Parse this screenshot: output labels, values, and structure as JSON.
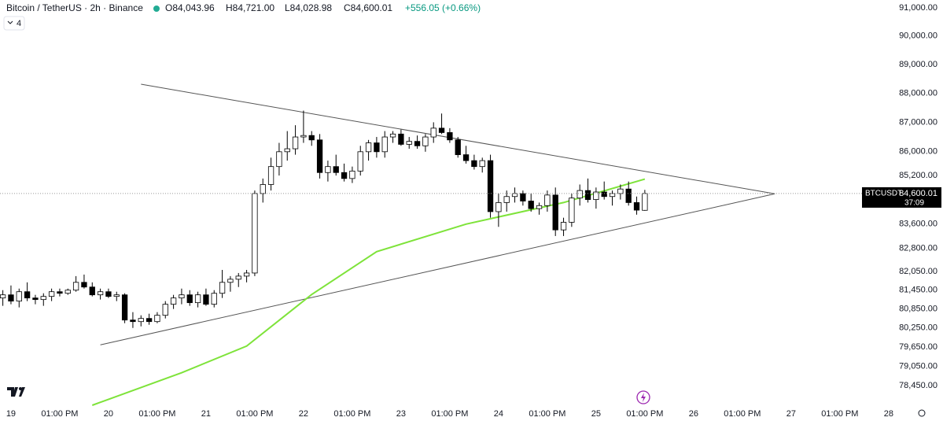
{
  "header": {
    "symbol": "Bitcoin / TetherUS · 2h · Binance",
    "open": "O84,043.96",
    "high": "H84,721.00",
    "low": "L84,028.98",
    "close": "C84,600.01",
    "change": "+556.05 (+0.66%)",
    "indicators": "4"
  },
  "chart_data": {
    "type": "candlestick",
    "log_scale": true,
    "grid": false,
    "up_color": "#ffffff",
    "down_color": "#000000",
    "wick_color": "#000000",
    "ylim": [
      77850,
      91280
    ],
    "xlim": [
      -2.7,
      217
    ],
    "yticks": [
      {
        "value": 91000,
        "label": "91,000.00"
      },
      {
        "value": 90000,
        "label": "90,000.00"
      },
      {
        "value": 89000,
        "label": "89,000.00"
      },
      {
        "value": 88000,
        "label": "88,000.00"
      },
      {
        "value": 87000,
        "label": "87,000.00"
      },
      {
        "value": 86000,
        "label": "86,000.00"
      },
      {
        "value": 85200,
        "label": "85,200.00"
      },
      {
        "value": 83600,
        "label": "83,600.00"
      },
      {
        "value": 82800,
        "label": "82,800.00"
      },
      {
        "value": 82050,
        "label": "82,050.00"
      },
      {
        "value": 81450,
        "label": "81,450.00"
      },
      {
        "value": 80850,
        "label": "80,850.00"
      },
      {
        "value": 80250,
        "label": "80,250.00"
      },
      {
        "value": 79650,
        "label": "79,650.00"
      },
      {
        "value": 79050,
        "label": "79,050.00"
      },
      {
        "value": 78450,
        "label": "78,450.00"
      }
    ],
    "xticks": [
      {
        "value": 0,
        "label": "19"
      },
      {
        "value": 12,
        "label": "01:00 PM"
      },
      {
        "value": 24,
        "label": "20"
      },
      {
        "value": 36,
        "label": "01:00 PM"
      },
      {
        "value": 48,
        "label": "21"
      },
      {
        "value": 60,
        "label": "01:00 PM"
      },
      {
        "value": 72,
        "label": "22"
      },
      {
        "value": 84,
        "label": "01:00 PM"
      },
      {
        "value": 96,
        "label": "23"
      },
      {
        "value": 108,
        "label": "01:00 PM"
      },
      {
        "value": 120,
        "label": "24"
      },
      {
        "value": 132,
        "label": "01:00 PM"
      },
      {
        "value": 144,
        "label": "25"
      },
      {
        "value": 156,
        "label": "01:00 PM"
      },
      {
        "value": 168,
        "label": "26"
      },
      {
        "value": 180,
        "label": "01:00 PM"
      },
      {
        "value": 192,
        "label": "27"
      },
      {
        "value": 204,
        "label": "01:00 PM"
      },
      {
        "value": 216,
        "label": "28"
      }
    ],
    "candles": {
      "x": [
        -2,
        0,
        2,
        4,
        6,
        8,
        10,
        12,
        14,
        16,
        18,
        20,
        22,
        24,
        26,
        28,
        30,
        32,
        34,
        36,
        38,
        40,
        42,
        44,
        46,
        48,
        50,
        52,
        54,
        56,
        58,
        60,
        62,
        64,
        66,
        68,
        70,
        72,
        74,
        76,
        78,
        80,
        82,
        84,
        86,
        88,
        90,
        92,
        94,
        96,
        98,
        100,
        102,
        104,
        106,
        108,
        110,
        112,
        114,
        116,
        118,
        120,
        122,
        124,
        126,
        128,
        130,
        132,
        134,
        136,
        138,
        140,
        142,
        144,
        146,
        148,
        150,
        152,
        154,
        156
      ],
      "open": [
        81200,
        81300,
        81100,
        81400,
        81200,
        81150,
        81250,
        81400,
        81350,
        81450,
        81700,
        81550,
        81300,
        81400,
        81250,
        81300,
        80500,
        80450,
        80550,
        80450,
        80650,
        81000,
        81200,
        81300,
        81050,
        81300,
        81000,
        81350,
        81700,
        81800,
        81900,
        82000,
        84600,
        84900,
        85500,
        86000,
        86100,
        86500,
        86550,
        86400,
        85300,
        85500,
        85300,
        85100,
        85350,
        86000,
        86300,
        86000,
        86500,
        86600,
        86250,
        86350,
        86200,
        86500,
        86800,
        86650,
        86400,
        85900,
        85700,
        85500,
        85700,
        84000,
        84300,
        84500,
        84600,
        84350,
        84100,
        84200,
        84550,
        83400,
        83650,
        84450,
        84700,
        84400,
        84650,
        84500,
        84600,
        84750,
        84300,
        84043.96
      ],
      "high": [
        81450,
        81600,
        81500,
        81700,
        81300,
        81350,
        81500,
        81500,
        81500,
        81900,
        81950,
        81700,
        81500,
        81500,
        81400,
        81350,
        80750,
        80650,
        80700,
        80750,
        81100,
        81300,
        81500,
        81450,
        81400,
        81500,
        81450,
        82100,
        81900,
        82000,
        82100,
        84700,
        85100,
        85800,
        86300,
        86700,
        86900,
        87400,
        86700,
        86600,
        85700,
        85900,
        85600,
        85500,
        86200,
        86400,
        86500,
        86700,
        86700,
        86750,
        86500,
        86550,
        86600,
        87000,
        87300,
        86800,
        86500,
        86200,
        85900,
        85800,
        85900,
        84600,
        84700,
        84800,
        84700,
        84600,
        84300,
        84700,
        84800,
        83800,
        84600,
        84900,
        85100,
        84800,
        85000,
        84700,
        84900,
        85000,
        84500,
        84721
      ],
      "low": [
        80950,
        81000,
        80900,
        81100,
        81000,
        80950,
        81100,
        81250,
        81300,
        81400,
        81500,
        81250,
        81150,
        81200,
        81100,
        80400,
        80250,
        80300,
        80350,
        80400,
        80550,
        80850,
        81000,
        80950,
        80900,
        80950,
        80900,
        81200,
        81400,
        81550,
        81700,
        81900,
        84300,
        84700,
        85200,
        85700,
        85900,
        86300,
        86200,
        85100,
        85000,
        85200,
        85000,
        84950,
        85200,
        85700,
        85800,
        85800,
        86300,
        86200,
        86100,
        86100,
        86000,
        86300,
        86600,
        86300,
        85800,
        85600,
        85400,
        85300,
        83800,
        83500,
        84000,
        84300,
        84200,
        84000,
        83900,
        84000,
        83200,
        83200,
        83500,
        84200,
        84300,
        84100,
        84400,
        84200,
        84400,
        84200,
        83900,
        84028.98
      ],
      "close": [
        81300,
        81100,
        81400,
        81200,
        81150,
        81250,
        81400,
        81350,
        81450,
        81700,
        81550,
        81300,
        81400,
        81250,
        81300,
        80500,
        80450,
        80550,
        80450,
        80650,
        81000,
        81200,
        81300,
        81050,
        81300,
        81000,
        81350,
        81700,
        81800,
        81900,
        82000,
        84600,
        84900,
        85500,
        86000,
        86100,
        86500,
        86550,
        86400,
        85300,
        85500,
        85300,
        85100,
        85350,
        86000,
        86300,
        86000,
        86500,
        86600,
        86250,
        86350,
        86200,
        86500,
        86800,
        86650,
        86400,
        85900,
        85700,
        85500,
        85700,
        84000,
        84300,
        84500,
        84600,
        84350,
        84100,
        84200,
        84550,
        83400,
        83650,
        84450,
        84700,
        84400,
        84650,
        84500,
        84600,
        84750,
        84300,
        84050,
        84600.01
      ]
    },
    "moving_average": {
      "color": "#7ee33a",
      "x": [
        20,
        42,
        58,
        74,
        90,
        112,
        136,
        156
      ],
      "values": [
        77850,
        78850,
        79680,
        81310,
        82690,
        83590,
        84300,
        85080
      ]
    },
    "trendlines": [
      {
        "color": "#555555",
        "x": [
          32,
          188
        ],
        "values": [
          88310,
          84590
        ]
      },
      {
        "color": "#555555",
        "x": [
          22,
          188
        ],
        "values": [
          79720,
          84590
        ]
      }
    ],
    "last_price": {
      "symbol": "BTCUSDT",
      "value": 84600.01,
      "label": "84,600.01",
      "countdown": "37:09"
    }
  }
}
